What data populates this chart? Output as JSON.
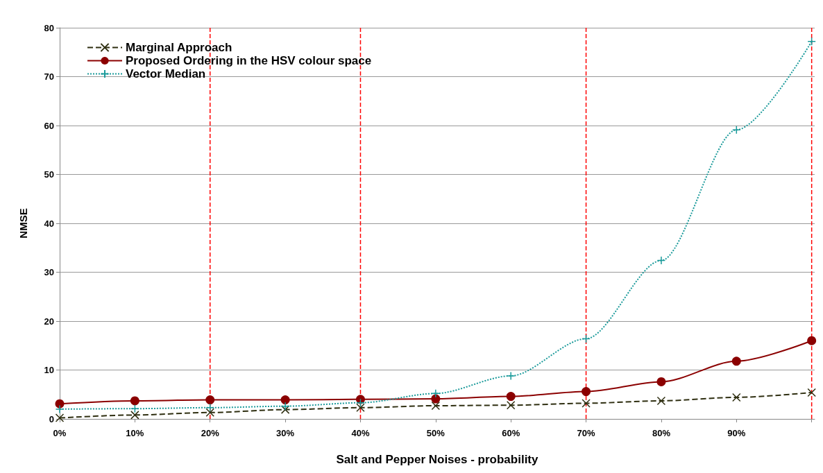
{
  "chart_data": {
    "type": "line",
    "xlabel": "Salt and Pepper Noises - probability",
    "ylabel": "NMSE",
    "x": [
      0,
      10,
      20,
      30,
      40,
      50,
      60,
      70,
      80,
      90,
      100
    ],
    "xlim": [
      0,
      100.4
    ],
    "xticks": [
      {
        "value": 0,
        "label": "0%"
      },
      {
        "value": 10,
        "label": "10%"
      },
      {
        "value": 20,
        "label": "20%"
      },
      {
        "value": 30,
        "label": "30%"
      },
      {
        "value": 40,
        "label": "40%"
      },
      {
        "value": 50,
        "label": "50%"
      },
      {
        "value": 60,
        "label": "60%"
      },
      {
        "value": 70,
        "label": "70%"
      },
      {
        "value": 80,
        "label": "80%"
      },
      {
        "value": 90,
        "label": "90%"
      },
      {
        "value": 100,
        "label": null
      }
    ],
    "ylim": [
      0,
      80
    ],
    "yticks": [
      0,
      10,
      20,
      30,
      40,
      50,
      60,
      70,
      80
    ],
    "grid": "y",
    "legend": "top left",
    "series": [
      {
        "name": "Marginal Approach",
        "color": "#2e2e10",
        "marker": "cross",
        "line_style": "dashed",
        "values": [
          0.2,
          0.8,
          1.3,
          1.9,
          2.3,
          2.7,
          2.8,
          3.2,
          3.7,
          4.4,
          5.4
        ]
      },
      {
        "name": "Proposed Ordering in the HSV colour space",
        "color": "#8b0000",
        "marker": "circle",
        "line_style": "solid",
        "values": [
          3.1,
          3.7,
          3.9,
          3.9,
          4.0,
          4.1,
          4.6,
          5.6,
          7.6,
          11.8,
          16.0
        ]
      },
      {
        "name": "Vector Median",
        "color": "#1a9a9a",
        "marker": "plus",
        "line_style": "dotted",
        "values": [
          2.0,
          2.1,
          2.3,
          2.6,
          3.3,
          5.2,
          8.8,
          16.4,
          32.4,
          59.1,
          77.2
        ]
      }
    ],
    "ref_lines": [
      {
        "axis": "x",
        "value": 20,
        "color": "#ff0000",
        "line_style": "dashed"
      },
      {
        "axis": "x",
        "value": 40,
        "color": "#ff0000",
        "line_style": "dashed"
      },
      {
        "axis": "x",
        "value": 70,
        "color": "#ff0000",
        "line_style": "dashed"
      },
      {
        "axis": "x",
        "value": 100,
        "color": "#ff0000",
        "line_style": "dashed"
      }
    ]
  }
}
